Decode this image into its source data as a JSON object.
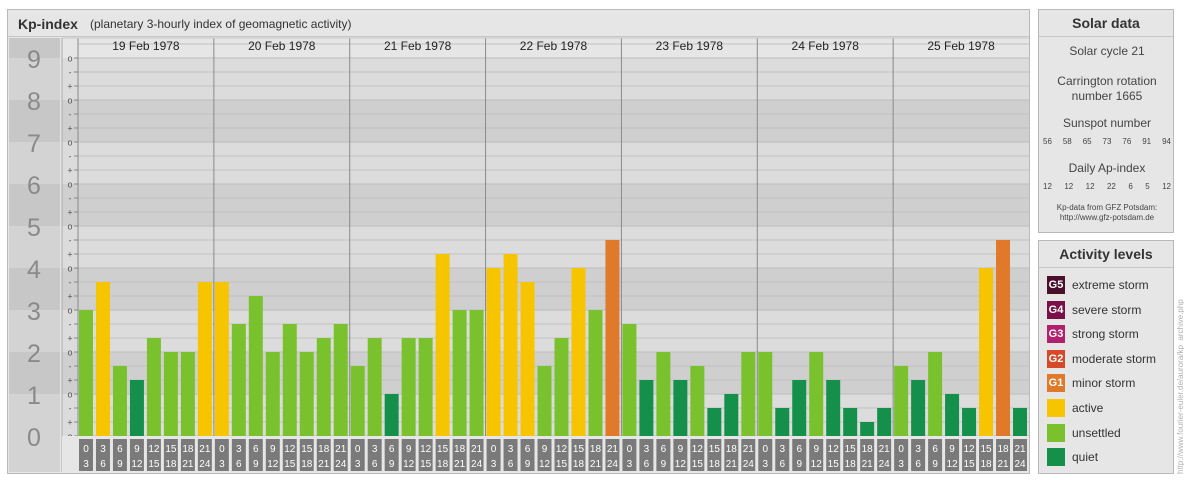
{
  "header": {
    "title": "Kp-index",
    "subtitle": "(planetary 3-hourly index of geomagnetic activity)"
  },
  "solar": {
    "title": "Solar data",
    "cycle": "Solar cycle 21",
    "carrington": "Carrington rotation number 1665",
    "sunspot_label": "Sunspot number",
    "sunspot_values": [
      "56",
      "58",
      "65",
      "73",
      "76",
      "91",
      "94"
    ],
    "ap_label": "Daily Ap-index",
    "ap_values": [
      "12",
      "12",
      "12",
      "22",
      "6",
      "5",
      "12"
    ],
    "source_line1": "Kp-data from GFZ Potsdam:",
    "source_line2": "http://www.gfz-potsdam.de"
  },
  "activity": {
    "title": "Activity levels",
    "items": [
      {
        "tag": "G5",
        "label": "extreme storm",
        "color": "#4a0f2a"
      },
      {
        "tag": "G4",
        "label": "severe storm",
        "color": "#7a1048"
      },
      {
        "tag": "G3",
        "label": "strong storm",
        "color": "#b3206e"
      },
      {
        "tag": "G2",
        "label": "moderate storm",
        "color": "#d64a2a"
      },
      {
        "tag": "G1",
        "label": "minor storm",
        "color": "#e0792a"
      },
      {
        "tag": "",
        "label": "active",
        "color": "#f7c400"
      },
      {
        "tag": "",
        "label": "unsettled",
        "color": "#7ac12e"
      },
      {
        "tag": "",
        "label": "quiet",
        "color": "#14904a"
      }
    ]
  },
  "credit": "http://www.fourier-euler.de/aurora/kp_archive.php",
  "chart_data": {
    "type": "bar",
    "title": "Kp-index",
    "ylim": [
      0,
      9
    ],
    "y_ticks": [
      "0",
      "1",
      "2",
      "3",
      "4",
      "5",
      "6",
      "7",
      "8",
      "9"
    ],
    "sub_ticks": [
      "o",
      "+",
      "-"
    ],
    "days": [
      "19 Feb 1978",
      "20 Feb 1978",
      "21 Feb 1978",
      "22 Feb 1978",
      "23 Feb 1978",
      "24 Feb 1978",
      "25 Feb 1978"
    ],
    "interval_start": [
      "0",
      "3",
      "6",
      "9",
      "12",
      "15",
      "18",
      "21"
    ],
    "interval_end": [
      "3",
      "6",
      "9",
      "12",
      "15",
      "18",
      "21",
      "24"
    ],
    "colors": {
      "quiet": "#14904a",
      "unsettled": "#7ac12e",
      "active": "#f7c400",
      "minor_storm": "#e0792a"
    },
    "values": [
      3.0,
      3.667,
      1.667,
      1.333,
      2.333,
      2.0,
      2.0,
      3.667,
      3.667,
      2.667,
      3.333,
      2.0,
      2.667,
      2.0,
      2.333,
      2.667,
      1.667,
      2.333,
      1.0,
      2.333,
      2.333,
      4.333,
      3.0,
      3.0,
      4.0,
      4.333,
      3.667,
      1.667,
      2.333,
      4.0,
      3.0,
      4.667,
      2.667,
      1.333,
      2.0,
      1.333,
      1.667,
      0.667,
      1.0,
      2.0,
      2.0,
      0.667,
      1.333,
      2.0,
      1.333,
      0.667,
      0.333,
      0.667,
      1.667,
      1.333,
      2.0,
      1.0,
      0.667,
      4.0,
      4.667,
      0.667
    ]
  }
}
